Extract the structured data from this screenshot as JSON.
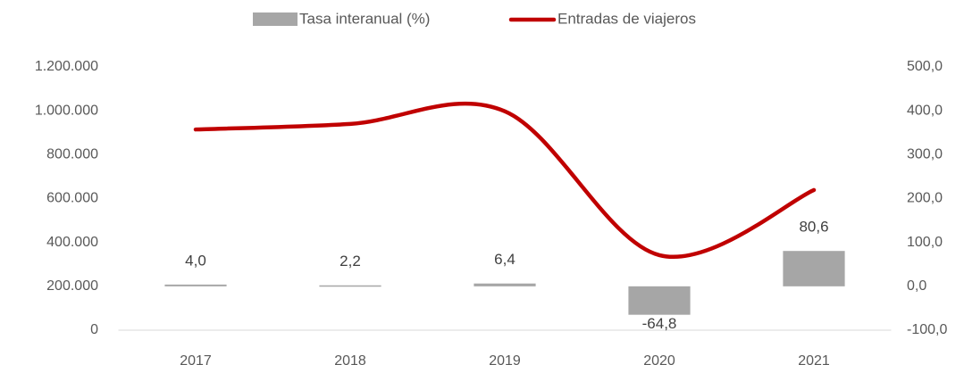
{
  "chart_data": {
    "type": "combo",
    "categories": [
      "2017",
      "2018",
      "2019",
      "2020",
      "2021"
    ],
    "series": [
      {
        "name": "Tasa interanual (%)",
        "type": "bar",
        "axis": "y2",
        "color": "#a6a6a6",
        "values": [
          4.0,
          2.2,
          6.4,
          -64.8,
          80.6
        ],
        "value_labels": [
          "4,0",
          "2,2",
          "6,4",
          "-64,8",
          "80,6"
        ]
      },
      {
        "name": "Entradas de viajeros",
        "type": "line",
        "color": "#c00000",
        "values": [
          915000,
          940000,
          998000,
          342000,
          639000
        ]
      }
    ],
    "ylim": [
      0,
      1200000
    ],
    "yticks": [
      0,
      {
        "value": 200000,
        "label": "200.000"
      },
      {
        "value": 400000,
        "label": "400.000"
      },
      {
        "value": 600000,
        "label": "600.000"
      },
      {
        "value": 800000,
        "label": "800.000"
      },
      {
        "value": 1000000,
        "label": "1.000.000"
      },
      {
        "value": 1200000,
        "label": "1.200.000"
      }
    ],
    "y2lim": [
      -100,
      500
    ],
    "y2ticks": [
      {
        "value": -100,
        "label": "-100,0"
      },
      {
        "value": 0,
        "label": "0,0"
      },
      {
        "value": 100,
        "label": "100,0"
      },
      {
        "value": 200,
        "label": "200,0"
      },
      {
        "value": 300,
        "label": "300,0"
      },
      {
        "value": 400,
        "label": "400,0"
      },
      {
        "value": 500,
        "label": "500,0"
      }
    ],
    "legend": "top",
    "grid": false
  }
}
